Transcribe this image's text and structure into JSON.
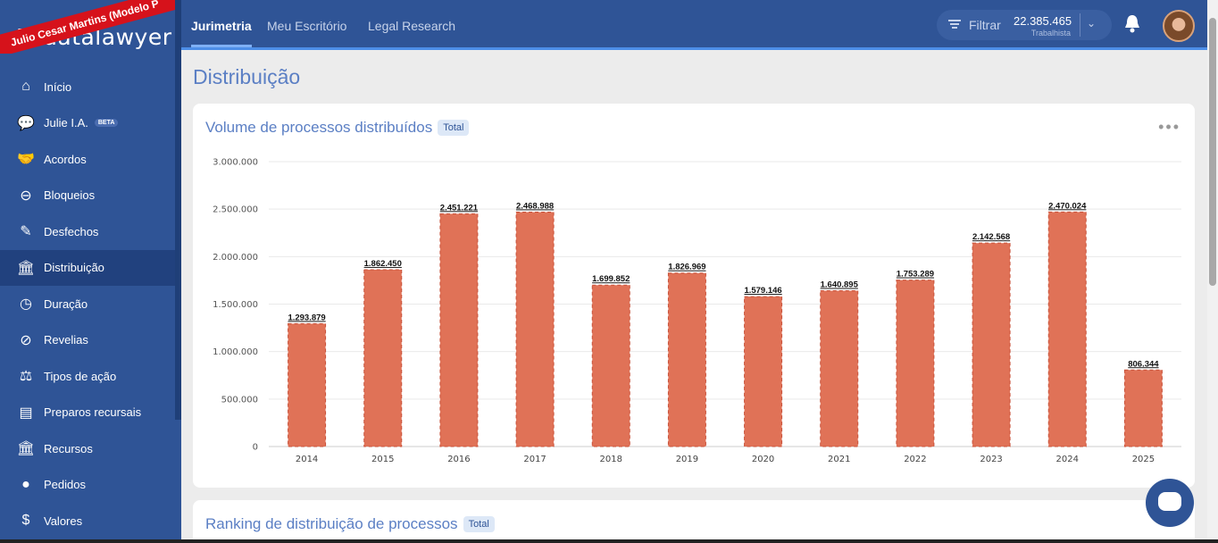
{
  "brand": {
    "logo_text": "datalawyer",
    "ribbon": "Julio Cesar Martins (Modelo P"
  },
  "sidebar": {
    "items": [
      {
        "label": "Início",
        "icon": "home-icon",
        "glyph": "⌂"
      },
      {
        "label": "Julie I.A.",
        "icon": "chat-bubbles-icon",
        "glyph": "💬",
        "badge": "BETA"
      },
      {
        "label": "Acordos",
        "icon": "handshake-icon",
        "glyph": "🤝"
      },
      {
        "label": "Bloqueios",
        "icon": "block-icon",
        "glyph": "⊖"
      },
      {
        "label": "Desfechos",
        "icon": "edit-icon",
        "glyph": "✎"
      },
      {
        "label": "Distribuição",
        "icon": "bank-icon",
        "glyph": "🏛"
      },
      {
        "label": "Duração",
        "icon": "clock-icon",
        "glyph": "◷"
      },
      {
        "label": "Revelias",
        "icon": "eye-slash-icon",
        "glyph": "⊘"
      },
      {
        "label": "Tipos de ação",
        "icon": "gavel-icon",
        "glyph": "⚖"
      },
      {
        "label": "Preparos recursais",
        "icon": "receipt-icon",
        "glyph": "▤"
      },
      {
        "label": "Recursos",
        "icon": "court-icon",
        "glyph": "🏛"
      },
      {
        "label": "Pedidos",
        "icon": "comment-icon",
        "glyph": "●"
      },
      {
        "label": "Valores",
        "icon": "dollar-icon",
        "glyph": "$"
      }
    ],
    "active_index": 5
  },
  "topbar": {
    "tabs": [
      "Jurimetria",
      "Meu Escritório",
      "Legal Research"
    ],
    "active_tab": 0,
    "filter_label": "Filtrar",
    "count": "22.385.465",
    "count_sub": "Trabalhista"
  },
  "page": {
    "title": "Distribuição"
  },
  "card1": {
    "title": "Volume de processos distribuídos",
    "badge": "Total"
  },
  "card2": {
    "title": "Ranking de distribuição de processos",
    "badge": "Total"
  },
  "chart_data": {
    "type": "bar",
    "title": "Volume de processos distribuídos",
    "categories": [
      "2014",
      "2015",
      "2016",
      "2017",
      "2018",
      "2019",
      "2020",
      "2021",
      "2022",
      "2023",
      "2024",
      "2025"
    ],
    "values": [
      1293879,
      1862450,
      2451221,
      2468988,
      1699852,
      1826969,
      1579146,
      1640895,
      1753289,
      2142568,
      2470024,
      806344
    ],
    "value_labels": [
      "1.293.879",
      "1.862.450",
      "2.451.221",
      "2.468.988",
      "1.699.852",
      "1.826.969",
      "1.579.146",
      "1.640.895",
      "1.753.289",
      "2.142.568",
      "2.470.024",
      "806.344"
    ],
    "ylim": [
      0,
      3000000
    ],
    "yticks": [
      0,
      500000,
      1000000,
      1500000,
      2000000,
      2500000,
      3000000
    ],
    "ytick_labels": [
      "0",
      "500.000",
      "1.000.000",
      "1.500.000",
      "2.000.000",
      "2.500.000",
      "3.000.000"
    ],
    "bar_color": "#e07257",
    "grid": true,
    "legend": "none"
  }
}
